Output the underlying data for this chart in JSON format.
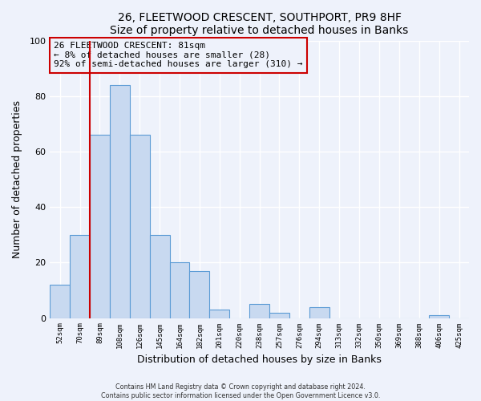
{
  "title": "26, FLEETWOOD CRESCENT, SOUTHPORT, PR9 8HF",
  "subtitle": "Size of property relative to detached houses in Banks",
  "xlabel": "Distribution of detached houses by size in Banks",
  "ylabel": "Number of detached properties",
  "bar_labels": [
    "52sqm",
    "70sqm",
    "89sqm",
    "108sqm",
    "126sqm",
    "145sqm",
    "164sqm",
    "182sqm",
    "201sqm",
    "220sqm",
    "238sqm",
    "257sqm",
    "276sqm",
    "294sqm",
    "313sqm",
    "332sqm",
    "350sqm",
    "369sqm",
    "388sqm",
    "406sqm",
    "425sqm"
  ],
  "bar_values": [
    12,
    30,
    66,
    84,
    66,
    30,
    20,
    17,
    3,
    0,
    5,
    2,
    0,
    4,
    0,
    0,
    0,
    0,
    0,
    1,
    0
  ],
  "bar_color": "#c8d9f0",
  "bar_edge_color": "#5b9bd5",
  "vline_x_index": 1.5,
  "annotation_box_text": "26 FLEETWOOD CRESCENT: 81sqm\n← 8% of detached houses are smaller (28)\n92% of semi-detached houses are larger (310) →",
  "vline_color": "#cc0000",
  "ylim": [
    0,
    100
  ],
  "background_color": "#eef2fb",
  "footer_line1": "Contains HM Land Registry data © Crown copyright and database right 2024.",
  "footer_line2": "Contains public sector information licensed under the Open Government Licence v3.0."
}
